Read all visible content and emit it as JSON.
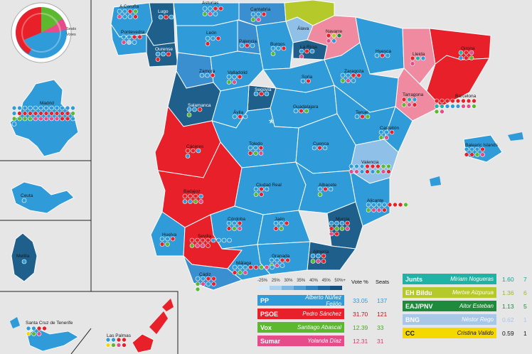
{
  "inset_legend": {
    "seats_label": "Seats",
    "votes_label": "Votes"
  },
  "scale": {
    "labels": [
      "-25%",
      "25%",
      "30%",
      "35%",
      "40%",
      "45%",
      "50%+"
    ],
    "vote_header": "Vote %",
    "seats_header": "Seats"
  },
  "parties_left": [
    {
      "name": "PP",
      "leader": "Alberto Núñez Feijóo",
      "vote": "33.05",
      "seats": "137",
      "color": "#2f9bd8",
      "text": "#2f9bd8"
    },
    {
      "name": "PSOE",
      "leader": "Pedro Sánchez",
      "vote": "31.70",
      "seats": "121",
      "color": "#e8202a",
      "text": "#c5101a"
    },
    {
      "name": "Vox",
      "leader": "Santiago Abascal",
      "vote": "12.39",
      "seats": "33",
      "color": "#5cb82e",
      "text": "#4aa822"
    },
    {
      "name": "Sumar",
      "leader": "Yolanda Díaz",
      "vote": "12.31",
      "seats": "31",
      "color": "#e64c8a",
      "text": "#d33a78"
    }
  ],
  "parties_right": [
    {
      "name": "Junts",
      "leader": "Miriam Nogueras",
      "vote": "1.60",
      "seats": "7",
      "color": "#20b3a5",
      "text": "#1aa296"
    },
    {
      "name": "EH Bildu",
      "leader": "Mertxe Aizpurua",
      "vote": "1.36",
      "seats": "6",
      "color": "#b5c92a",
      "text": "#a5b820"
    },
    {
      "name": "EAJ/PNV",
      "leader": "Aitor Esteban",
      "vote": "1.13",
      "seats": "5",
      "color": "#1f8a3b",
      "text": "#1f8a3b"
    },
    {
      "name": "BNG",
      "leader": "Néstor Rego",
      "vote": "0.62",
      "seats": "1",
      "color": "#a9c7e6",
      "text": "#a9c7e6"
    },
    {
      "name": "CC",
      "leader": "Cristina Valido",
      "vote": "0.59",
      "seats": "1",
      "color": "#f5d800",
      "text": "#111111"
    }
  ],
  "provinces": {
    "a_coruna": "A Coruña",
    "lugo": "Lugo",
    "asturias": "Asturias",
    "cantabria": "Cantabria",
    "pontevedra": "Pontevedra",
    "ourense": "Ourense",
    "leon": "León",
    "palencia": "Palencia",
    "burgos": "Burgos",
    "la_rioja": "La Rioja",
    "alava": "Álava",
    "navarre": "Navarre",
    "huesca": "Huesca",
    "lleida": "Lleida",
    "girona": "Girona",
    "barcelona": "Barcelona",
    "tarragona": "Tarragona",
    "zamora": "Zamora",
    "valladolid": "Valladolid",
    "soria": "Soria",
    "zaragoza": "Zaragoza",
    "salamanca": "Salamanca",
    "segovia": "Segovia",
    "avila": "Ávila",
    "guadalajara": "Guadalajara",
    "teruel": "Teruel",
    "castellon": "Castellón",
    "caceres": "Cáceres",
    "toledo": "Toledo",
    "cuenca": "Cuenca",
    "valencia": "Valencia",
    "badajoz": "Badajoz",
    "ciudad_real": "Ciudad Real",
    "albacete": "Albacete",
    "alicante": "Alicante",
    "cordoba": "Córdoba",
    "jaen": "Jaén",
    "murcia": "Murcia",
    "huelva": "Huelva",
    "sevilla": "Sevilla",
    "granada": "Granada",
    "almeria": "Almería",
    "malaga": "Málaga",
    "cadiz": "Cádiz",
    "balearic": "Balearic Islands",
    "madrid": "Madrid",
    "ceuta": "Ceuta",
    "melilla": "Melilla",
    "santa_cruz": "Santa Cruz de Tenerife",
    "las_palmas": "Las Palmas"
  },
  "capital_marker": "*"
}
